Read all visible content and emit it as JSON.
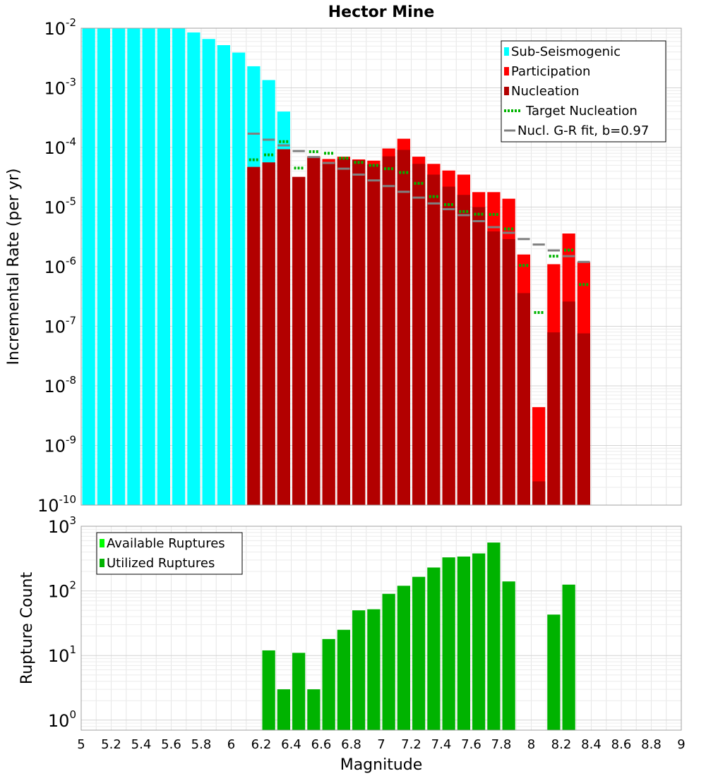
{
  "chart_data": [
    {
      "type": "bar",
      "title": "Hector Mine",
      "xlabel": "",
      "ylabel": "Incremental Rate (per yr)",
      "yscale": "log",
      "ylim": [
        1e-10,
        0.01
      ],
      "xlim": [
        5,
        9
      ],
      "bin_width": 0.1,
      "grid": true,
      "legend_position": "top-right",
      "y_ticks": [
        {
          "base": "10",
          "exp": "-10",
          "value": 1e-10
        },
        {
          "base": "10",
          "exp": "-9",
          "value": 1e-09
        },
        {
          "base": "10",
          "exp": "-8",
          "value": 1e-08
        },
        {
          "base": "10",
          "exp": "-7",
          "value": 1e-07
        },
        {
          "base": "10",
          "exp": "-6",
          "value": 1e-06
        },
        {
          "base": "10",
          "exp": "-5",
          "value": 1e-05
        },
        {
          "base": "10",
          "exp": "-4",
          "value": 0.0001
        },
        {
          "base": "10",
          "exp": "-3",
          "value": 0.001
        },
        {
          "base": "10",
          "exp": "-2",
          "value": 0.01
        }
      ],
      "legend": [
        {
          "label": "Sub-Seismogenic",
          "kind": "box",
          "color": "#00ffff"
        },
        {
          "label": "Participation",
          "kind": "box",
          "color": "#ff0000"
        },
        {
          "label": "Nucleation",
          "kind": "box",
          "color": "#b20000"
        },
        {
          "label": "Target Nucleation",
          "kind": "dotted",
          "color": "#00b300"
        },
        {
          "label": "Nucl. G-R fit, b=0.97",
          "kind": "line",
          "color": "#808080"
        }
      ],
      "series": [
        {
          "name": "Sub-Seismogenic",
          "color": "#00ffff",
          "x": [
            5.05,
            5.15,
            5.25,
            5.35,
            5.45,
            5.55,
            5.65,
            5.75,
            5.85,
            5.95,
            6.05,
            6.15,
            6.25,
            6.35
          ],
          "values": [
            0.01,
            0.01,
            0.01,
            0.01,
            0.01,
            0.01,
            0.01,
            0.0085,
            0.0066,
            0.0052,
            0.0039,
            0.0023,
            0.00135,
            0.0004
          ]
        },
        {
          "name": "Participation",
          "color": "#ff0000",
          "x": [
            6.15,
            6.25,
            6.35,
            6.45,
            6.55,
            6.65,
            6.75,
            6.85,
            6.95,
            7.05,
            7.15,
            7.25,
            7.35,
            7.45,
            7.55,
            7.65,
            7.75,
            7.85,
            7.95,
            8.05,
            8.15,
            8.25,
            8.35
          ],
          "values": [
            4.7e-05,
            5.6e-05,
            9.3e-05,
            3.2e-05,
            7.1e-05,
            6.4e-05,
            7e-05,
            6.3e-05,
            6e-05,
            9.6e-05,
            0.00014,
            7e-05,
            5.3e-05,
            4.1e-05,
            3.5e-05,
            1.78e-05,
            1.78e-05,
            1.38e-05,
            1.6e-06,
            4.4e-09,
            1.1e-06,
            3.6e-06,
            1.2e-06
          ]
        },
        {
          "name": "Nucleation",
          "color": "#b20000",
          "x": [
            6.15,
            6.25,
            6.35,
            6.45,
            6.55,
            6.65,
            6.75,
            6.85,
            6.95,
            7.05,
            7.15,
            7.25,
            7.35,
            7.45,
            7.55,
            7.65,
            7.75,
            7.85,
            7.95,
            8.05,
            8.15,
            8.25,
            8.35
          ],
          "values": [
            4.7e-05,
            5.6e-05,
            9.3e-05,
            3.2e-05,
            6.7e-05,
            5.7e-05,
            6.5e-05,
            6.1e-05,
            5.2e-05,
            7.1e-05,
            9.1e-05,
            5.3e-05,
            3.5e-05,
            2.2e-05,
            1.6e-05,
            1e-05,
            3.9e-06,
            2.9e-06,
            3.6e-07,
            2.5e-10,
            7.9e-08,
            2.6e-07,
            7.6e-08
          ]
        },
        {
          "name": "Target Nucleation",
          "color": "#00b300",
          "x": [
            6.15,
            6.25,
            6.35,
            6.45,
            6.55,
            6.65,
            6.75,
            6.85,
            6.95,
            7.05,
            7.15,
            7.25,
            7.35,
            7.45,
            7.55,
            7.65,
            7.75,
            7.85,
            7.95,
            8.05,
            8.15,
            8.25,
            8.35
          ],
          "values": [
            6.2e-05,
            7.5e-05,
            0.000125,
            4.5e-05,
            8.5e-05,
            8e-05,
            6.6e-05,
            5.6e-05,
            5e-05,
            4.4e-05,
            3.8e-05,
            2.5e-05,
            1.5e-05,
            1.1e-05,
            8.4e-06,
            7.6e-06,
            7.5e-06,
            4.3e-06,
            1.05e-06,
            1.7e-07,
            1.5e-06,
            1.9e-06,
            5e-07
          ]
        },
        {
          "name": "Nucl. G-R fit, b=0.97",
          "color": "#808080",
          "x": [
            6.15,
            6.25,
            6.35,
            6.45,
            6.55,
            6.65,
            6.75,
            6.85,
            6.95,
            7.05,
            7.15,
            7.25,
            7.35,
            7.45,
            7.55,
            7.65,
            7.75,
            7.85,
            7.95,
            8.05,
            8.15,
            8.25,
            8.35
          ],
          "values": [
            0.00017,
            0.000135,
            0.000108,
            8.7e-05,
            6.9e-05,
            5.5e-05,
            4.4e-05,
            3.5e-05,
            2.8e-05,
            2.25e-05,
            1.8e-05,
            1.44e-05,
            1.15e-05,
            9.2e-06,
            7.3e-06,
            5.8e-06,
            4.6e-06,
            3.7e-06,
            2.9e-06,
            2.35e-06,
            1.87e-06,
            1.5e-06,
            1.2e-06
          ]
        }
      ]
    },
    {
      "type": "bar",
      "title": "",
      "xlabel": "Magnitude",
      "ylabel": "Rupture Count",
      "yscale": "log",
      "ylim": [
        0.7,
        1000
      ],
      "xlim": [
        5,
        9
      ],
      "bin_width": 0.1,
      "grid": true,
      "legend_position": "top-left",
      "x_ticks": [
        "5",
        "5.2",
        "5.4",
        "5.6",
        "5.8",
        "6",
        "6.2",
        "6.4",
        "6.6",
        "6.8",
        "7",
        "7.2",
        "7.4",
        "7.6",
        "7.8",
        "8",
        "8.2",
        "8.4",
        "8.6",
        "8.8",
        "9"
      ],
      "y_ticks": [
        {
          "base": "10",
          "exp": "0",
          "value": 1
        },
        {
          "base": "10",
          "exp": "1",
          "value": 10
        },
        {
          "base": "10",
          "exp": "2",
          "value": 100
        },
        {
          "base": "10",
          "exp": "3",
          "value": 1000
        }
      ],
      "legend": [
        {
          "label": "Available Ruptures",
          "kind": "box",
          "color": "#00ff00"
        },
        {
          "label": "Utilized Ruptures",
          "kind": "box",
          "color": "#00b300"
        }
      ],
      "series": [
        {
          "name": "Utilized Ruptures",
          "color": "#00b300",
          "x": [
            6.25,
            6.35,
            6.45,
            6.55,
            6.65,
            6.75,
            6.85,
            6.95,
            7.05,
            7.15,
            7.25,
            7.35,
            7.45,
            7.55,
            7.65,
            7.75,
            7.85,
            8.15,
            8.25
          ],
          "values": [
            12,
            3,
            11,
            3,
            18,
            25,
            50,
            52,
            90,
            120,
            165,
            230,
            330,
            340,
            380,
            560,
            140,
            43,
            125
          ]
        }
      ]
    }
  ]
}
